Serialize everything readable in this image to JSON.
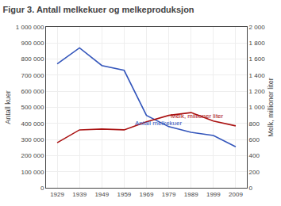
{
  "chart_data": {
    "type": "line",
    "title": "Figur 3. Antall melkekuer og melkeproduksjon",
    "x": [
      1929,
      1939,
      1949,
      1959,
      1969,
      1979,
      1989,
      1999,
      2009
    ],
    "series": [
      {
        "color": "#3355bb",
        "values": [
          770000,
          870000,
          760000,
          730000,
          450000,
          380000,
          345000,
          325000,
          255000
        ]
      },
      {
        "color": "#aa1111",
        "axis": "y2",
        "values": [
          560,
          720,
          730,
          720,
          820,
          900,
          935,
          830,
          770
        ]
      }
    ],
    "y_label": "Antall kuer",
    "y2_label": "Melk, millioner liter",
    "xlim": [
      1924,
      2014
    ],
    "xticks": [
      1929,
      1939,
      1949,
      1959,
      1969,
      1979,
      1989,
      1999,
      2009
    ],
    "ylim": [
      0,
      1000000
    ],
    "yticks": [
      0,
      {
        "value": 100000,
        "label": "100 000"
      },
      {
        "value": 200000,
        "label": "200 000"
      },
      {
        "value": 300000,
        "label": "300 000"
      },
      {
        "value": 400000,
        "label": "400 000"
      },
      {
        "value": 500000,
        "label": "500 000"
      },
      {
        "value": 600000,
        "label": "600 000"
      },
      {
        "value": 700000,
        "label": "700 000"
      },
      {
        "value": 800000,
        "label": "800 000"
      },
      {
        "value": 900000,
        "label": "900 000"
      },
      {
        "value": 1000000,
        "label": "1 000 000"
      }
    ],
    "y2lim": [
      0,
      2000
    ],
    "y2ticks": [
      0,
      200,
      400,
      600,
      800,
      {
        "value": 1000,
        "label": "1 000"
      },
      {
        "value": 1200,
        "label": "1 200"
      },
      {
        "value": 1400,
        "label": "1 400"
      },
      {
        "value": 1600,
        "label": "1 600"
      },
      {
        "value": 1800,
        "label": "1 800"
      },
      {
        "value": 2000,
        "label": "2 000"
      }
    ],
    "grid": true,
    "annotations": [
      {
        "text": "Melk, millioner liter",
        "x": 1979,
        "y": 830,
        "axis": "y2",
        "color": "#aa1111"
      },
      {
        "text": "Antall melkekuer",
        "x": 1963,
        "y": 370000,
        "color": "#3355bb"
      }
    ]
  }
}
